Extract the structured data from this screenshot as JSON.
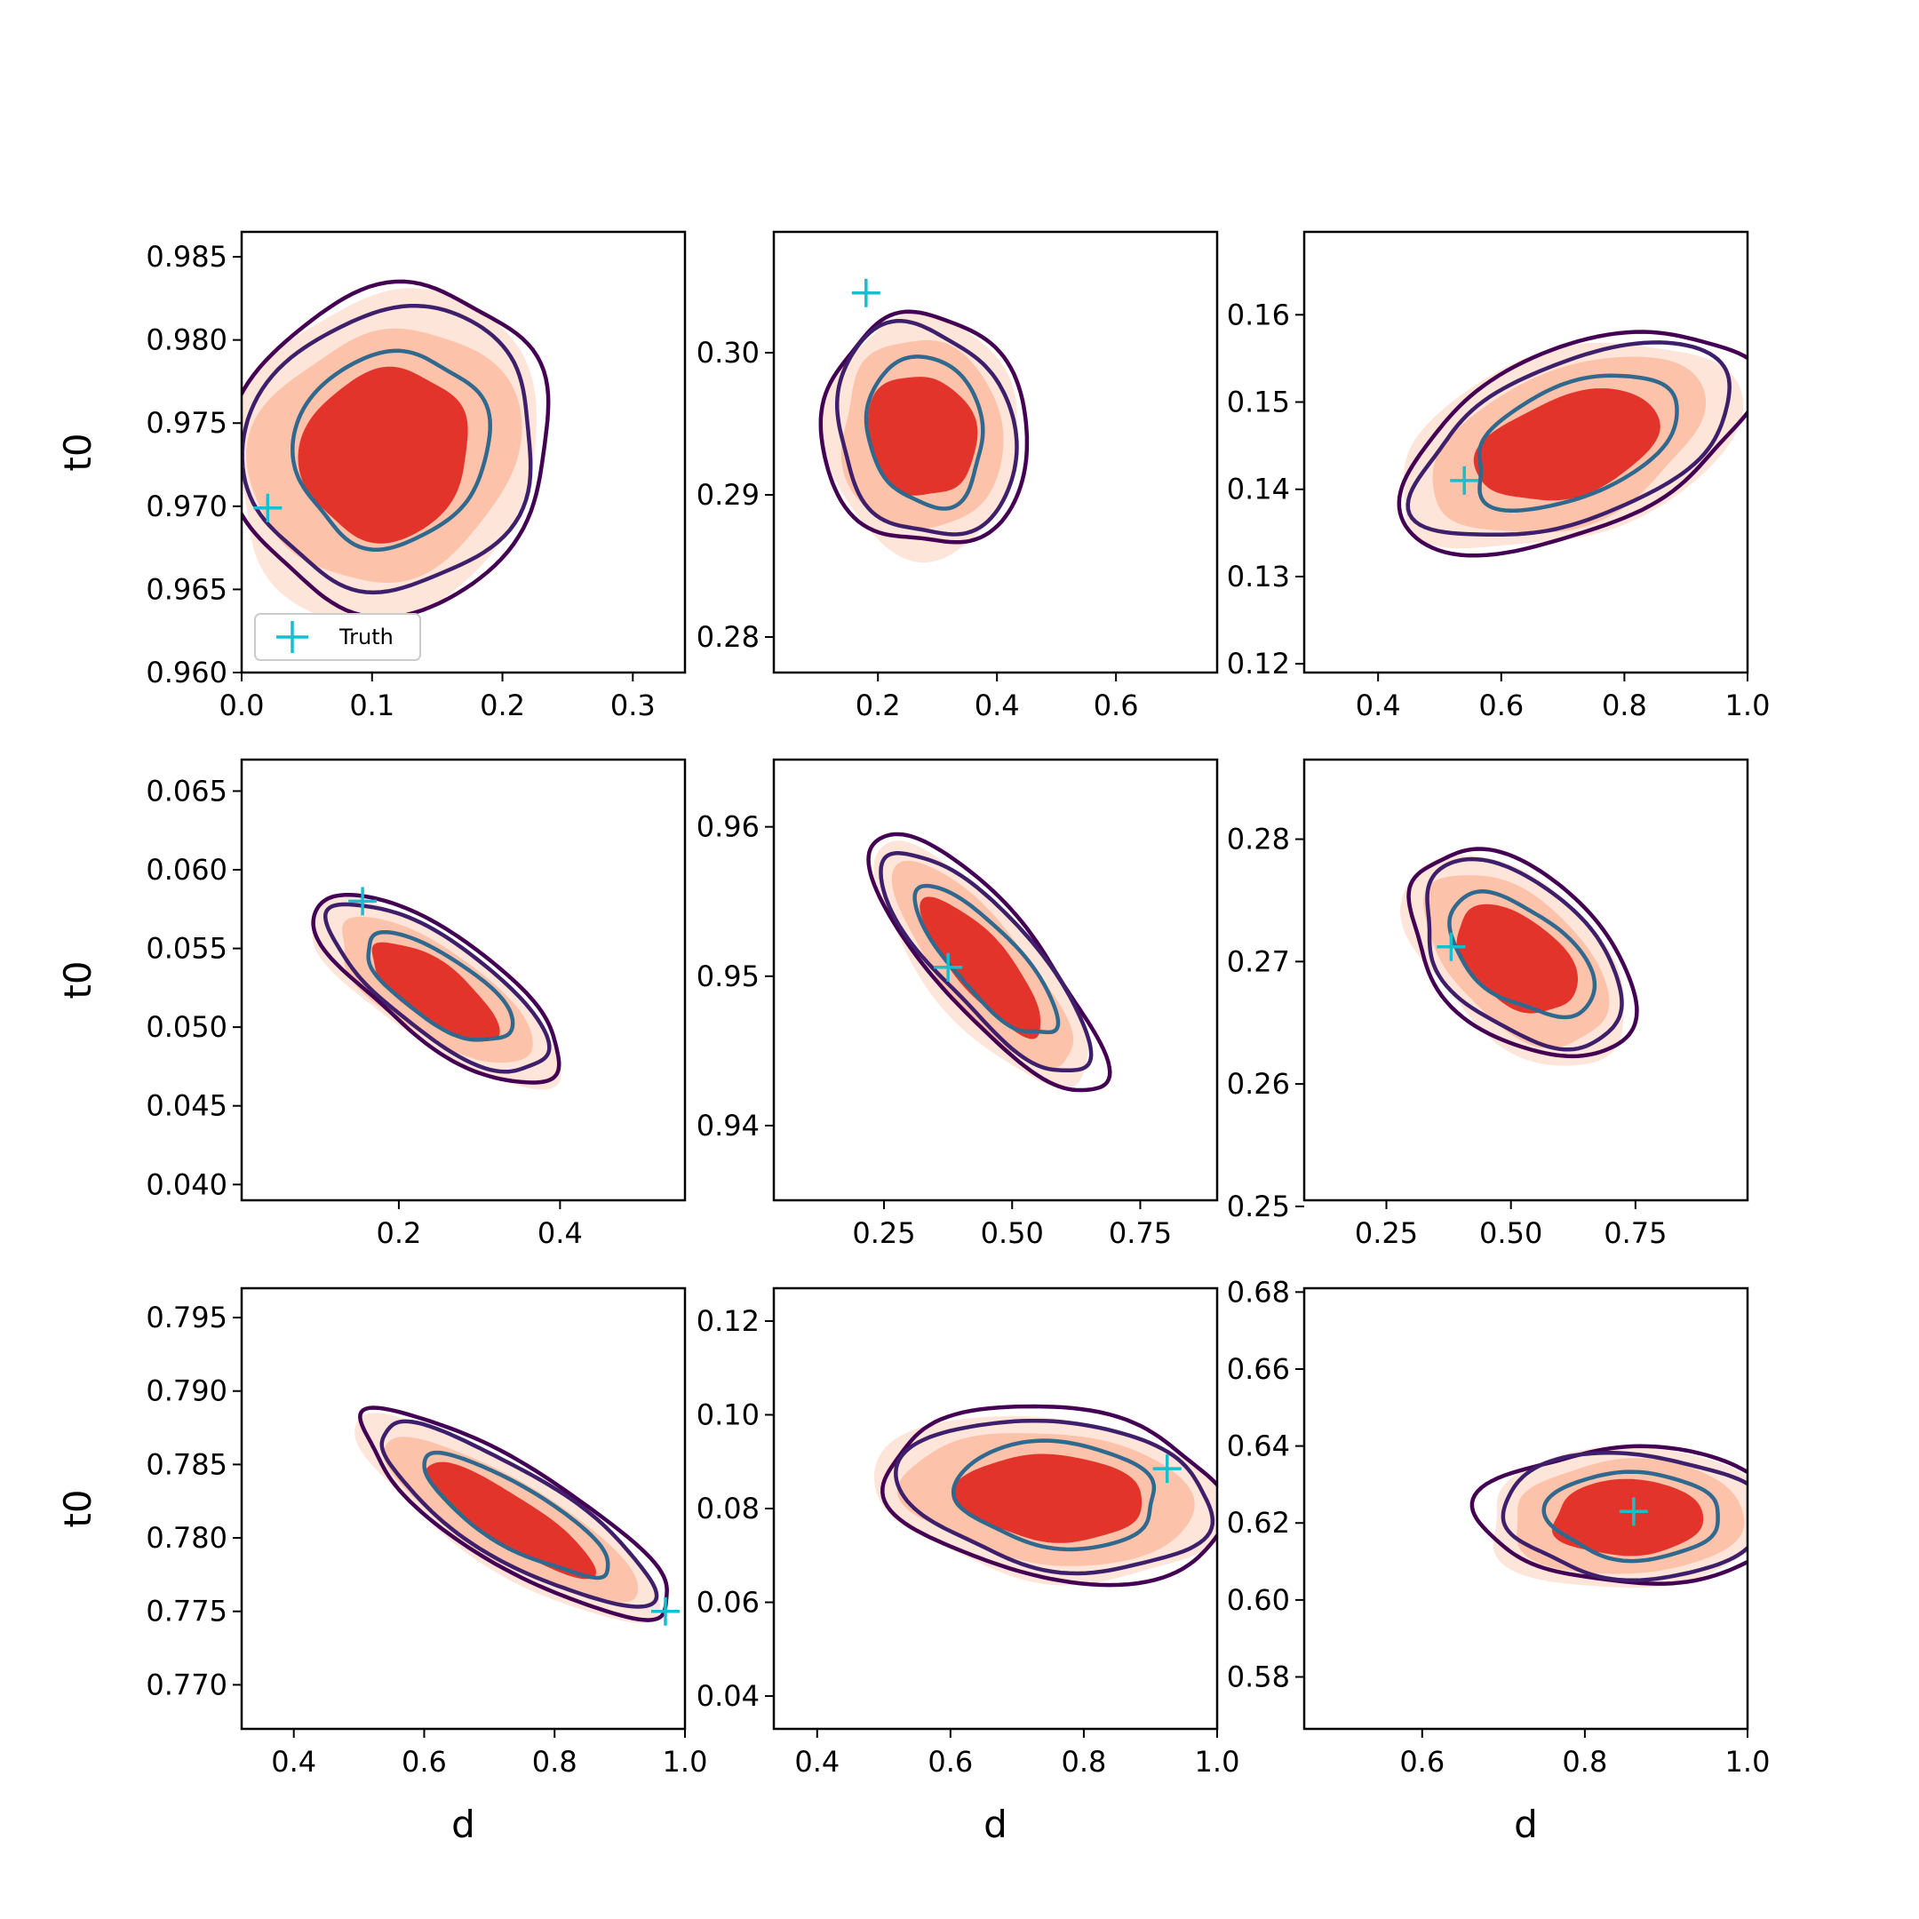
{
  "figure": {
    "xlabel": "d",
    "ylabel": "t0",
    "legend_label": "Truth",
    "colors": {
      "fill_dark": "#e3342b",
      "fill_mid": "#fcc2aa",
      "fill_light": "#fee5d9",
      "contour_outer": "#440154",
      "contour_mid": "#3e1f6b",
      "contour_inner": "#31688e",
      "truth_marker": "#17becf"
    }
  },
  "chart_data": [
    {
      "type": "contour",
      "panel": 1,
      "xlabel": "",
      "ylabel": "t0",
      "xlim": [
        0.0,
        0.34
      ],
      "ylim": [
        0.96,
        0.9865
      ],
      "xticks": [
        "0.0",
        "0.1",
        "0.2",
        "0.3"
      ],
      "yticks": [
        "0.960",
        "0.965",
        "0.970",
        "0.975",
        "0.980",
        "0.985"
      ],
      "ytick_values": [
        0.96,
        0.965,
        0.97,
        0.975,
        0.98,
        0.985
      ],
      "xtick_values": [
        0.0,
        0.1,
        0.2,
        0.3
      ],
      "center": [
        0.115,
        0.9735
      ],
      "spread": [
        0.095,
        0.0075
      ],
      "rho": 0.15,
      "truth": [
        0.02,
        0.9699
      ],
      "legend": "Truth"
    },
    {
      "type": "contour",
      "panel": 2,
      "xlabel": "",
      "ylabel": "",
      "xlim": [
        0.025,
        0.77
      ],
      "ylim": [
        0.2775,
        0.3085
      ],
      "xticks": [
        "0.2",
        "0.4",
        "0.6"
      ],
      "yticks": [
        "0.28",
        "0.29",
        "0.30"
      ],
      "ytick_values": [
        0.28,
        0.29,
        0.3
      ],
      "xtick_values": [
        0.2,
        0.4,
        0.6
      ],
      "center": [
        0.28,
        0.2945
      ],
      "spread": [
        0.13,
        0.0065
      ],
      "rho": -0.1,
      "truth": [
        0.18,
        0.3042
      ]
    },
    {
      "type": "contour",
      "panel": 3,
      "xlabel": "",
      "ylabel": "",
      "xlim": [
        0.28,
        1.0
      ],
      "ylim": [
        0.119,
        0.1695
      ],
      "xticks": [
        "0.4",
        "0.6",
        "0.8",
        "1.0"
      ],
      "yticks": [
        "0.12",
        "0.13",
        "0.14",
        "0.15",
        "0.16"
      ],
      "ytick_values": [
        0.12,
        0.13,
        0.14,
        0.15,
        0.16
      ],
      "xtick_values": [
        0.4,
        0.6,
        0.8,
        1.0
      ],
      "center": [
        0.72,
        0.1455
      ],
      "spread": [
        0.22,
        0.0095
      ],
      "rho": 0.45,
      "truth": [
        0.54,
        0.141
      ]
    },
    {
      "type": "contour",
      "panel": 4,
      "xlabel": "",
      "ylabel": "t0",
      "xlim": [
        0.005,
        0.555
      ],
      "ylim": [
        0.039,
        0.067
      ],
      "xticks": [
        "0.2",
        "0.4"
      ],
      "yticks": [
        "0.040",
        "0.045",
        "0.050",
        "0.055",
        "0.060",
        "0.065"
      ],
      "ytick_values": [
        0.04,
        0.045,
        0.05,
        0.055,
        0.06,
        0.065
      ],
      "xtick_values": [
        0.2,
        0.4
      ],
      "center": [
        0.25,
        0.0525
      ],
      "spread": [
        0.12,
        0.0045
      ],
      "rho": -0.75,
      "truth": [
        0.155,
        0.058
      ]
    },
    {
      "type": "contour",
      "panel": 5,
      "xlabel": "",
      "ylabel": "",
      "xlim": [
        0.035,
        0.9
      ],
      "ylim": [
        0.935,
        0.9645
      ],
      "xticks": [
        "0.25",
        "0.50",
        "0.75"
      ],
      "yticks": [
        "0.94",
        "0.95",
        "0.96"
      ],
      "ytick_values": [
        0.94,
        0.95,
        0.96
      ],
      "xtick_values": [
        0.25,
        0.5,
        0.75
      ],
      "center": [
        0.45,
        0.951
      ],
      "spread": [
        0.17,
        0.0065
      ],
      "rho": -0.8,
      "truth": [
        0.375,
        0.9506
      ]
    },
    {
      "type": "contour",
      "panel": 6,
      "xlabel": "",
      "ylabel": "",
      "xlim": [
        0.085,
        0.975
      ],
      "ylim": [
        0.2505,
        0.2865
      ],
      "xticks": [
        "0.25",
        "0.50",
        "0.75"
      ],
      "yticks": [
        "0.25",
        "0.26",
        "0.27",
        "0.28"
      ],
      "ytick_values": [
        0.25,
        0.26,
        0.27,
        0.28
      ],
      "xtick_values": [
        0.25,
        0.5,
        0.75
      ],
      "center": [
        0.52,
        0.2705
      ],
      "spread": [
        0.18,
        0.0065
      ],
      "rho": -0.5,
      "truth": [
        0.38,
        0.2712
      ]
    },
    {
      "type": "contour",
      "panel": 7,
      "xlabel": "d",
      "ylabel": "t0",
      "xlim": [
        0.32,
        1.0
      ],
      "ylim": [
        0.767,
        0.797
      ],
      "xticks": [
        "0.4",
        "0.6",
        "0.8",
        "1.0"
      ],
      "yticks": [
        "0.770",
        "0.775",
        "0.780",
        "0.785",
        "0.790",
        "0.795"
      ],
      "ytick_values": [
        0.77,
        0.775,
        0.78,
        0.785,
        0.79,
        0.795
      ],
      "xtick_values": [
        0.4,
        0.6,
        0.8,
        1.0
      ],
      "center": [
        0.74,
        0.7815
      ],
      "spread": [
        0.19,
        0.0055
      ],
      "rho": -0.85,
      "truth": [
        0.97,
        0.775
      ]
    },
    {
      "type": "contour",
      "panel": 8,
      "xlabel": "d",
      "ylabel": "",
      "xlim": [
        0.335,
        1.0
      ],
      "ylim": [
        0.033,
        0.127
      ],
      "xticks": [
        "0.4",
        "0.6",
        "0.8",
        "1.0"
      ],
      "yticks": [
        "0.04",
        "0.06",
        "0.08",
        "0.10",
        "0.12"
      ],
      "ytick_values": [
        0.04,
        0.06,
        0.08,
        0.1,
        0.12
      ],
      "xtick_values": [
        0.4,
        0.6,
        0.8,
        1.0
      ],
      "center": [
        0.76,
        0.083
      ],
      "spread": [
        0.2,
        0.014
      ],
      "rho": -0.15,
      "truth": [
        0.925,
        0.0885
      ]
    },
    {
      "type": "contour",
      "panel": 9,
      "xlabel": "d",
      "ylabel": "",
      "xlim": [
        0.455,
        1.0
      ],
      "ylim": [
        0.5665,
        0.681
      ],
      "xticks": [
        "0.6",
        "0.8",
        "1.0"
      ],
      "yticks": [
        "0.58",
        "0.60",
        "0.62",
        "0.64",
        "0.66",
        "0.68"
      ],
      "ytick_values": [
        0.58,
        0.6,
        0.62,
        0.64,
        0.66,
        0.68
      ],
      "xtick_values": [
        0.6,
        0.8,
        1.0
      ],
      "center": [
        0.86,
        0.622
      ],
      "spread": [
        0.14,
        0.014
      ],
      "rho": 0.0,
      "truth": [
        0.86,
        0.623
      ]
    }
  ]
}
